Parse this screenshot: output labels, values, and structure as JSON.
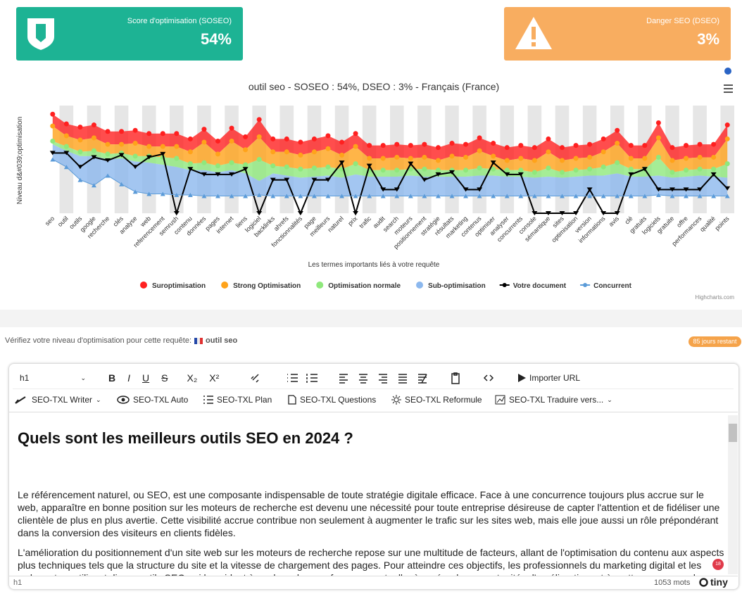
{
  "cards": [
    {
      "label": "Score d'optimisation (SOSEO)",
      "value": "54%"
    },
    {
      "label": "Danger SEO (DSEO)",
      "value": "3%"
    }
  ],
  "chart_data": {
    "type": "area-line",
    "title": "outil seo - SOSEO : 54%, DSEO : 3% - Français (France)",
    "x_label": "Les termes importants liés à votre requête",
    "y_label": "Niveau d&#039;optimisation",
    "credits": "Highcharts.com",
    "ylim": [
      0,
      100
    ],
    "alternate_bands": true,
    "categories": [
      "seo",
      "outil",
      "outils",
      "google",
      "recherche",
      "clés",
      "analyse",
      "web",
      "referencement",
      "semrush",
      "contenu",
      "données",
      "pages",
      "internet",
      "liens",
      "logiciel",
      "backlinks",
      "ahrefs",
      "fonctionnalités",
      "page",
      "meilleurs",
      "naturel",
      "prix",
      "trafic",
      "audit",
      "search",
      "moteurs",
      "positionnement",
      "stratégie",
      "résultats",
      "marketing",
      "contenus",
      "optimiser",
      "analyser",
      "concurrents",
      "console",
      "sémantique",
      "sites",
      "optimisation",
      "version",
      "informations",
      "avis",
      "clé",
      "gratuits",
      "logiciels",
      "gratuite",
      "offre",
      "performances",
      "qualité",
      "points"
    ],
    "series": [
      {
        "name": "Suroptimisation",
        "kind": "area",
        "marker": "circle",
        "color": "#ff2020",
        "values": [
          92,
          83,
          80,
          82,
          76,
          76,
          77,
          74,
          74,
          74,
          69,
          78,
          67,
          79,
          71,
          87,
          69,
          69,
          66,
          69,
          72,
          66,
          74,
          63,
          63,
          64,
          63,
          64,
          61,
          65,
          64,
          70,
          65,
          61,
          63,
          61,
          69,
          61,
          63,
          64,
          69,
          77,
          63,
          63,
          84,
          61,
          63,
          64,
          64,
          82
        ]
      },
      {
        "name": "Strong Optimisation",
        "kind": "area",
        "marker": "circle",
        "color": "#ffa31a",
        "values": [
          81,
          72,
          68,
          70,
          64,
          64,
          65,
          62,
          62,
          62,
          57,
          66,
          55,
          67,
          59,
          71,
          57,
          57,
          54,
          57,
          60,
          54,
          62,
          51,
          51,
          52,
          51,
          52,
          49,
          53,
          52,
          58,
          53,
          49,
          51,
          49,
          57,
          49,
          51,
          52,
          57,
          65,
          51,
          51,
          70,
          49,
          51,
          52,
          52,
          69
        ]
      },
      {
        "name": "Optimisation normale",
        "kind": "area",
        "marker": "circle",
        "color": "#8fe87c",
        "values": [
          67,
          62,
          57,
          58,
          55,
          56,
          53,
          53,
          52,
          51,
          46,
          47,
          44,
          47,
          45,
          50,
          44,
          43,
          41,
          42,
          43,
          41,
          46,
          40,
          40,
          40,
          41,
          41,
          40,
          40,
          40,
          42,
          41,
          40,
          40,
          38,
          42,
          38,
          40,
          41,
          43,
          47,
          41,
          41,
          52,
          38,
          40,
          41,
          41,
          46
        ]
      },
      {
        "name": "Sub-optimisation",
        "kind": "area",
        "marker": "none",
        "color": "#8cb8ee",
        "values": [
          64,
          58,
          53,
          53,
          50,
          51,
          48,
          47,
          45,
          43,
          40,
          40,
          38,
          40,
          37,
          30,
          37,
          35,
          33,
          34,
          35,
          33,
          36,
          34,
          34,
          34,
          35,
          34,
          34,
          34,
          34,
          35,
          35,
          34,
          34,
          33,
          34,
          33,
          34,
          35,
          35,
          37,
          34,
          34,
          35,
          33,
          34,
          35,
          34,
          33
        ]
      },
      {
        "name": "Votre document",
        "kind": "line",
        "marker": "triangle-down",
        "color": "#000000",
        "values": [
          56,
          56,
          43,
          52,
          49,
          54,
          43,
          52,
          55,
          0,
          41,
          36,
          36,
          36,
          41,
          0,
          31,
          31,
          0,
          31,
          31,
          47,
          0,
          44,
          22,
          22,
          46,
          31,
          36,
          38,
          22,
          22,
          47,
          36,
          36,
          0,
          0,
          0,
          0,
          22,
          0,
          0,
          36,
          41,
          22,
          22,
          22,
          22,
          36,
          23
        ]
      },
      {
        "name": "Concurrent",
        "kind": "line",
        "marker": "triangle",
        "color": "#5b9bd8",
        "values": [
          50,
          43,
          31,
          26,
          35,
          27,
          20,
          18,
          18,
          17,
          17,
          16,
          16,
          16,
          16,
          17,
          16,
          16,
          16,
          16,
          16,
          16,
          16,
          16,
          16,
          16,
          16,
          16,
          16,
          16,
          16,
          16,
          16,
          16,
          16,
          16,
          16,
          16,
          16,
          16,
          16,
          16,
          16,
          16,
          17,
          16,
          16,
          16,
          16,
          16
        ]
      }
    ]
  },
  "check": {
    "label": "Vérifiez votre niveau d'optimisation pour cette requête:",
    "query": "outil seo",
    "badge": "85 jours restant"
  },
  "editor": {
    "block_format": "h1",
    "format_icons": [
      "B",
      "I",
      "U",
      "S"
    ],
    "script_icons": [
      "X₂",
      "X²"
    ],
    "import": "Importer URL",
    "tools": [
      "SEO-TXL Writer",
      "SEO-TXL Auto",
      "SEO-TXL Plan",
      "SEO-TXL Questions",
      "SEO-TXL Reformule",
      "SEO-TXL Traduire vers..."
    ],
    "heading": "Quels sont les meilleurs outils SEO en 2024 ?",
    "paragraphs": [
      "Le référencement naturel, ou SEO, est une composante indispensable de toute stratégie digitale efficace. Face à une concurrence toujours plus accrue sur le web, apparaître en bonne position sur les moteurs de recherche est devenu une nécessité pour toute entreprise désireuse de capter l'attention et de fidéliser une clientèle de plus en plus avertie. Cette visibilité accrue contribue non seulement à augmenter le trafic sur les sites web, mais elle joue aussi un rôle prépondérant dans la conversion des visiteurs en clients fidèles.",
      "L'amélioration du positionnement d'un site web sur les moteurs de recherche repose sur une multitude de facteurs, allant de l'optimisation du contenu aux aspects plus techniques tels que la structure du site et la vitesse de chargement des pages. Pour atteindre ces objectifs, les professionnels du marketing digital et les webmasters utilisent divers outils SEO qui les aident à analyser leur performance actuelle, à repérer les opportunités d'amélioration, et à mettre en œuvre des stratégies de contenu adaptées."
    ],
    "status_path": "h1",
    "word_count": "1053 mots",
    "brand": "tiny",
    "notifications": "18"
  }
}
